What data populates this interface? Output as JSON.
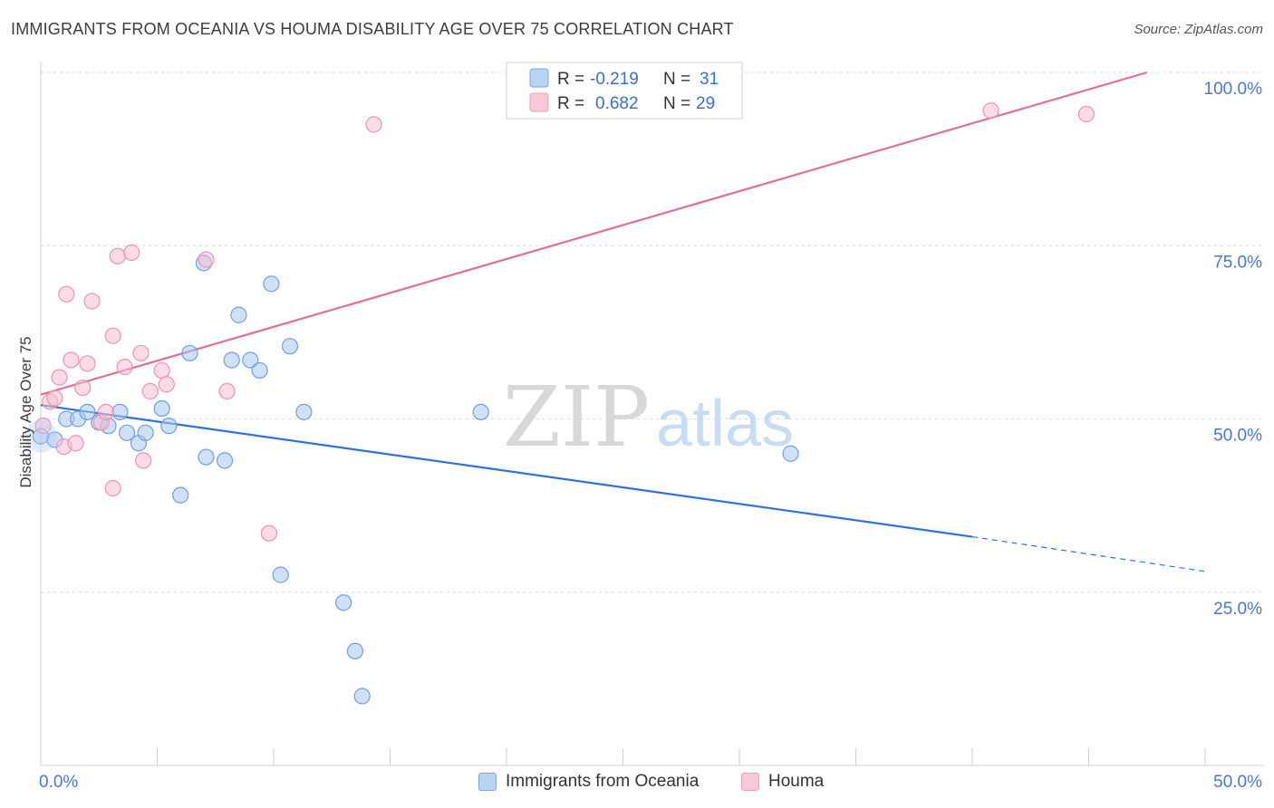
{
  "title": "IMMIGRANTS FROM OCEANIA VS HOUMA DISABILITY AGE OVER 75 CORRELATION CHART",
  "source": "Source: ZipAtlas.com",
  "watermark": {
    "zip": "ZIP",
    "atlas": "atlas"
  },
  "colors": {
    "blue_fill": "#a9c8f0",
    "blue_stroke": "#6f9fe0",
    "blue_line": "#2f72d6",
    "pink_fill": "#f7bfd1",
    "pink_stroke": "#ee93b1",
    "pink_line": "#e06e98",
    "tick": "#4a78c8",
    "grid": "#d9d9d9"
  },
  "legend": {
    "r_label": "R =",
    "n_label": "N =",
    "series": [
      {
        "r": "-0.219",
        "n": "31"
      },
      {
        "r": "0.682",
        "n": "29"
      }
    ]
  },
  "chart_data": {
    "type": "scatter",
    "title": "IMMIGRANTS FROM OCEANIA VS HOUMA DISABILITY AGE OVER 75 CORRELATION CHART",
    "ylabel": "Disability Age Over 75",
    "xlabel": "",
    "xlim": [
      0,
      50
    ],
    "ylim": [
      0,
      100
    ],
    "x_tick_labels": [
      {
        "value": 0,
        "label": "0.0%"
      },
      {
        "value": 50,
        "label": "50.0%"
      }
    ],
    "y_tick_labels": [
      {
        "value": 100,
        "label": "100.0%"
      },
      {
        "value": 75,
        "label": "75.0%"
      },
      {
        "value": 50,
        "label": "50.0%"
      },
      {
        "value": 25,
        "label": "25.0%"
      }
    ],
    "series": [
      {
        "name": "Immigrants from Oceania",
        "color": "#a9c8f0",
        "points": [
          [
            0.0,
            47.5
          ],
          [
            0.6,
            47.0
          ],
          [
            1.1,
            50.0
          ],
          [
            1.6,
            50.0
          ],
          [
            2.0,
            51.0
          ],
          [
            2.5,
            49.5
          ],
          [
            2.9,
            49.0
          ],
          [
            3.4,
            51.0
          ],
          [
            3.7,
            48.0
          ],
          [
            4.2,
            46.5
          ],
          [
            4.5,
            48.0
          ],
          [
            5.2,
            51.5
          ],
          [
            5.5,
            49.0
          ],
          [
            6.0,
            39.0
          ],
          [
            6.4,
            59.5
          ],
          [
            7.0,
            72.5
          ],
          [
            7.1,
            44.5
          ],
          [
            7.9,
            44.0
          ],
          [
            8.2,
            58.5
          ],
          [
            8.5,
            65.0
          ],
          [
            9.0,
            58.5
          ],
          [
            9.4,
            57.0
          ],
          [
            9.9,
            69.5
          ],
          [
            10.3,
            27.5
          ],
          [
            10.7,
            60.5
          ],
          [
            11.3,
            51.0
          ],
          [
            13.0,
            23.5
          ],
          [
            13.5,
            16.5
          ],
          [
            13.8,
            10.0
          ],
          [
            18.9,
            51.0
          ],
          [
            32.2,
            45.0
          ]
        ],
        "trend": {
          "x": [
            0,
            40
          ],
          "y": [
            52,
            33
          ],
          "dashed_extension": {
            "x": [
              40,
              50
            ],
            "y": [
              33,
              28
            ]
          }
        }
      },
      {
        "name": "Houma",
        "color": "#f7bfd1",
        "points": [
          [
            0.1,
            49.0
          ],
          [
            0.4,
            52.5
          ],
          [
            0.6,
            53.0
          ],
          [
            0.8,
            56.0
          ],
          [
            1.0,
            46.0
          ],
          [
            1.1,
            68.0
          ],
          [
            1.3,
            58.5
          ],
          [
            1.5,
            46.5
          ],
          [
            1.8,
            54.5
          ],
          [
            2.0,
            58.0
          ],
          [
            2.2,
            67.0
          ],
          [
            2.6,
            49.5
          ],
          [
            2.8,
            51.0
          ],
          [
            3.1,
            40.0
          ],
          [
            3.1,
            62.0
          ],
          [
            3.3,
            73.5
          ],
          [
            3.6,
            57.5
          ],
          [
            3.9,
            74.0
          ],
          [
            4.3,
            59.5
          ],
          [
            4.4,
            44.0
          ],
          [
            4.7,
            54.0
          ],
          [
            5.2,
            57.0
          ],
          [
            5.4,
            55.0
          ],
          [
            7.1,
            73.0
          ],
          [
            8.0,
            54.0
          ],
          [
            9.8,
            33.5
          ],
          [
            14.3,
            92.5
          ],
          [
            40.8,
            94.5
          ],
          [
            44.9,
            94.0
          ]
        ],
        "trend": {
          "x": [
            0,
            47.5
          ],
          "y": [
            53.5,
            100
          ]
        }
      }
    ]
  },
  "bottom_legend": [
    "Immigrants from Oceania",
    "Houma"
  ]
}
